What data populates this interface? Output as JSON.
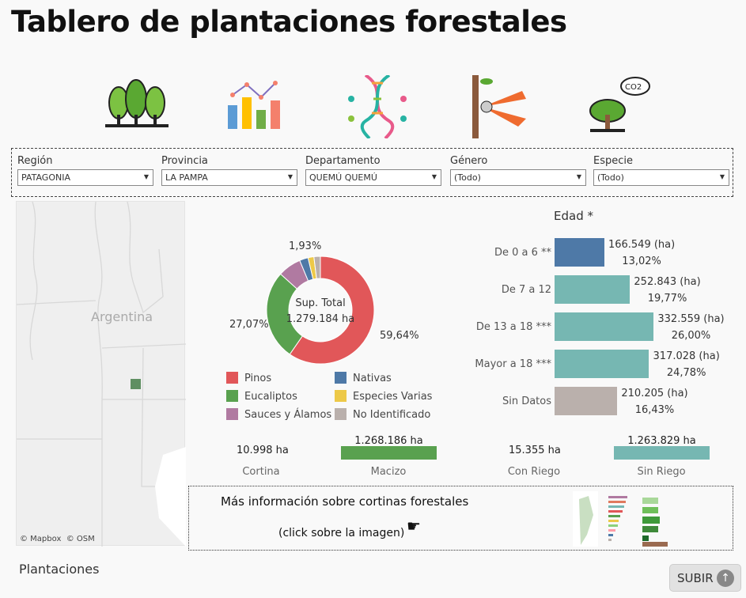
{
  "title": "Tablero de plantaciones forestales",
  "icons": [
    "forest-icon",
    "bar-chart-icon",
    "dna-icon",
    "pruning-shears-icon",
    "co2-tree-icon"
  ],
  "filters": [
    {
      "label": "Región",
      "value": "PATAGONIA"
    },
    {
      "label": "Provincia",
      "value": "LA PAMPA"
    },
    {
      "label": "Departamento",
      "value": "QUEMÚ QUEMÚ"
    },
    {
      "label": "Género",
      "value": "(Todo)"
    },
    {
      "label": "Especie",
      "value": "(Todo)"
    }
  ],
  "map": {
    "country_label": "Argentina",
    "attribution_mapbox": "© Mapbox",
    "attribution_osm": "© OSM"
  },
  "donut": {
    "center_title": "Sup. Total",
    "center_value": "1.279.184 ha",
    "labels": {
      "pinos": "59,64%",
      "eucaliptos": "27,07%",
      "small": "1,93%"
    },
    "slices": [
      {
        "name": "Pinos",
        "pct": 59.64,
        "color": "#e15759"
      },
      {
        "name": "Eucaliptos",
        "pct": 27.07,
        "color": "#59a14f"
      },
      {
        "name": "Sauces y Álamos",
        "pct": 7.0,
        "color": "#b07aa1"
      },
      {
        "name": "Nativas",
        "pct": 2.6,
        "color": "#4e79a7"
      },
      {
        "name": "Especies Varias",
        "pct": 1.76,
        "color": "#edc948"
      },
      {
        "name": "No Identificado",
        "pct": 1.93,
        "color": "#bab0ac"
      }
    ]
  },
  "edad": {
    "title": "Edad *",
    "bars": [
      {
        "label": "De 0 a 6 **",
        "ha": 166549,
        "ha_text": "166.549 (ha)",
        "pct": "13,02%",
        "color": "#4e79a7"
      },
      {
        "label": "De 7 a 12",
        "ha": 252843,
        "ha_text": "252.843 (ha)",
        "pct": "19,77%",
        "color": "#76b7b2"
      },
      {
        "label": "De 13 a 18 ***",
        "ha": 332559,
        "ha_text": "332.559 (ha)",
        "pct": "26,00%",
        "color": "#76b7b2"
      },
      {
        "label": "Mayor a 18 ***",
        "ha": 317028,
        "ha_text": "317.028 (ha)",
        "pct": "24,78%",
        "color": "#76b7b2"
      },
      {
        "label": "Sin Datos",
        "ha": 210205,
        "ha_text": "210.205 (ha)",
        "pct": "16,43%",
        "color": "#bab0ac"
      }
    ]
  },
  "kpis": {
    "cortina": {
      "label": "Cortina",
      "value": "10.998 ha"
    },
    "macizo": {
      "label": "Macizo",
      "value": "1.268.186 ha"
    },
    "con_riego": {
      "label": "Con Riego",
      "value": "15.355 ha"
    },
    "sin_riego": {
      "label": "Sin Riego",
      "value": "1.263.829 ha"
    }
  },
  "info": {
    "title": "Más información sobre cortinas forestales",
    "hint": "(click sobre la imagen)"
  },
  "section_title": "Plantaciones",
  "subir_label": "SUBIR"
}
